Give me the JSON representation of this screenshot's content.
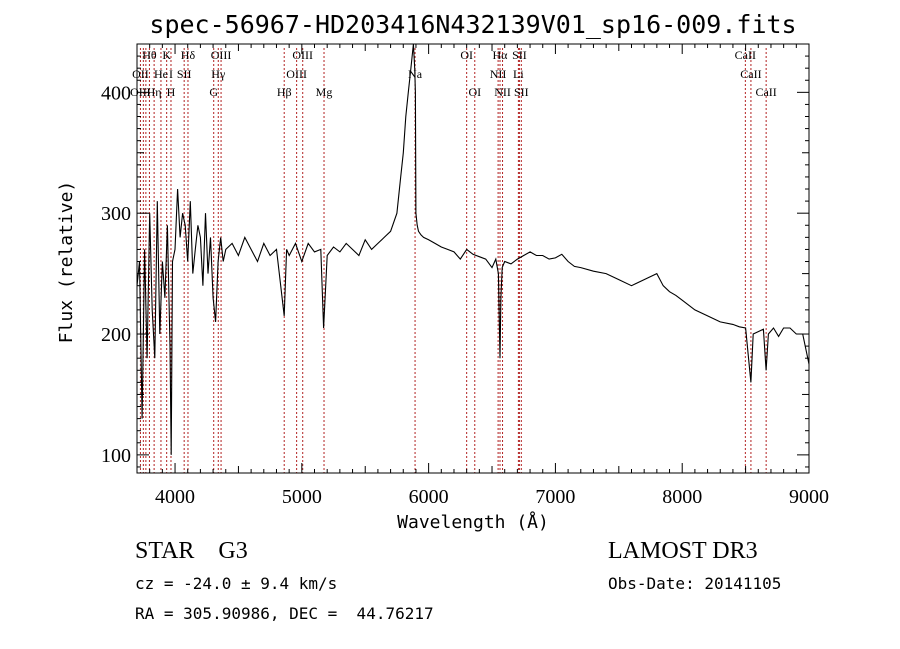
{
  "chart_data": {
    "type": "line",
    "title": "spec-56967-HD203416N432139V01_sp16-009.fits",
    "xlabel": "Wavelength (Å)",
    "ylabel": "Flux (relative)",
    "xlim": [
      3700,
      9000
    ],
    "ylim": [
      85,
      440
    ],
    "xticks": [
      4000,
      5000,
      6000,
      7000,
      8000,
      9000
    ],
    "yticks": [
      100,
      200,
      300,
      400
    ],
    "series": [
      {
        "name": "flux",
        "x": [
          3700,
          3720,
          3740,
          3760,
          3780,
          3800,
          3820,
          3840,
          3860,
          3880,
          3900,
          3920,
          3940,
          3960,
          3970,
          3980,
          4000,
          4020,
          4040,
          4060,
          4080,
          4100,
          4120,
          4140,
          4160,
          4180,
          4200,
          4220,
          4240,
          4260,
          4280,
          4300,
          4320,
          4340,
          4360,
          4380,
          4400,
          4450,
          4500,
          4550,
          4600,
          4650,
          4700,
          4750,
          4800,
          4850,
          4861,
          4880,
          4900,
          4950,
          5000,
          5050,
          5100,
          5150,
          5172,
          5200,
          5250,
          5300,
          5350,
          5400,
          5450,
          5500,
          5550,
          5600,
          5650,
          5700,
          5750,
          5780,
          5800,
          5820,
          5840,
          5860,
          5880,
          5890,
          5896,
          5900,
          5910,
          5920,
          5940,
          5960,
          6000,
          6050,
          6100,
          6150,
          6200,
          6250,
          6300,
          6350,
          6400,
          6450,
          6500,
          6530,
          6550,
          6563,
          6570,
          6580,
          6600,
          6650,
          6700,
          6750,
          6800,
          6850,
          6900,
          6950,
          7000,
          7050,
          7100,
          7150,
          7200,
          7300,
          7400,
          7500,
          7600,
          7700,
          7800,
          7850,
          7900,
          7950,
          8000,
          8100,
          8200,
          8300,
          8400,
          8450,
          8500,
          8542,
          8560,
          8600,
          8640,
          8662,
          8680,
          8720,
          8760,
          8800,
          8850,
          8900,
          8950,
          9000
        ],
        "values": [
          240,
          260,
          130,
          270,
          180,
          300,
          220,
          180,
          310,
          200,
          260,
          230,
          290,
          190,
          100,
          260,
          270,
          320,
          280,
          300,
          290,
          260,
          310,
          250,
          270,
          290,
          280,
          240,
          300,
          250,
          280,
          230,
          210,
          260,
          280,
          260,
          270,
          275,
          265,
          280,
          270,
          260,
          275,
          265,
          270,
          225,
          215,
          270,
          265,
          275,
          260,
          275,
          268,
          270,
          205,
          265,
          272,
          268,
          275,
          270,
          265,
          278,
          270,
          275,
          280,
          285,
          300,
          330,
          350,
          380,
          400,
          420,
          440,
          420,
          400,
          300,
          290,
          285,
          282,
          280,
          278,
          275,
          272,
          270,
          268,
          262,
          270,
          266,
          264,
          262,
          255,
          262,
          250,
          180,
          230,
          255,
          260,
          258,
          262,
          265,
          268,
          265,
          265,
          262,
          263,
          266,
          260,
          256,
          255,
          252,
          250,
          245,
          240,
          245,
          250,
          240,
          235,
          232,
          228,
          220,
          215,
          210,
          208,
          206,
          205,
          160,
          200,
          202,
          204,
          170,
          200,
          205,
          198,
          205,
          205,
          200,
          200,
          175
        ]
      }
    ],
    "line_ids": {
      "top": [
        {
          "label": "Hθ",
          "wave": 3798
        },
        {
          "label": "K",
          "wave": 3934
        },
        {
          "label": "Hδ",
          "wave": 4102
        },
        {
          "label": "OIII",
          "wave": 4363
        },
        {
          "label": "OIII",
          "wave": 5007
        },
        {
          "label": "OI",
          "wave": 6300
        },
        {
          "label": "Hα",
          "wave": 6563
        },
        {
          "label": "SII",
          "wave": 6716
        },
        {
          "label": "CaII",
          "wave": 8498
        }
      ],
      "middle": [
        {
          "label": "OII",
          "wave": 3727
        },
        {
          "label": "He",
          "wave": 3889
        },
        {
          "label": "I",
          "wave": 3968
        },
        {
          "label": "SII",
          "wave": 4072
        },
        {
          "label": "Hγ",
          "wave": 4341
        },
        {
          "label": "OIII",
          "wave": 4959
        },
        {
          "label": "Na",
          "wave": 5893
        },
        {
          "label": "NII",
          "wave": 6548
        },
        {
          "label": "Li",
          "wave": 6708
        },
        {
          "label": "CaII",
          "wave": 8542
        }
      ],
      "bottom": [
        {
          "label": "OIII",
          "wave": 3727
        },
        {
          "label": "Hη",
          "wave": 3835
        },
        {
          "label": "H",
          "wave": 3968
        },
        {
          "label": "G",
          "wave": 4305
        },
        {
          "label": "Hβ",
          "wave": 4861
        },
        {
          "label": "Mg",
          "wave": 5175
        },
        {
          "label": "OI",
          "wave": 6364
        },
        {
          "label": "NII",
          "wave": 6583
        },
        {
          "label": "SII",
          "wave": 6731
        },
        {
          "label": "CaII",
          "wave": 8662
        }
      ],
      "markers": [
        3727,
        3750,
        3770,
        3798,
        3835,
        3889,
        3934,
        3968,
        4072,
        4102,
        4305,
        4341,
        4363,
        4861,
        4959,
        5007,
        5175,
        5893,
        6300,
        6364,
        6548,
        6563,
        6583,
        6708,
        6716,
        6731,
        8498,
        8542,
        8662
      ]
    },
    "line_color": "#000000",
    "marker_color": "#b22222"
  },
  "info": {
    "class": "STAR    G3",
    "survey": "LAMOST DR3",
    "redshift": "cz = -24.0 ± 9.4 km/s",
    "obs_date": "Obs-Date: 20141105",
    "coords": "RA = 305.90986, DEC =  44.76217"
  }
}
